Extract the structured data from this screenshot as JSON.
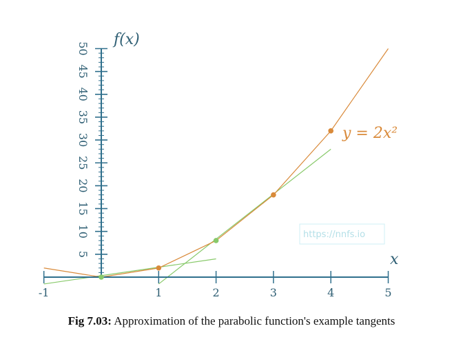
{
  "chart_data": {
    "type": "line",
    "x_ticks": [
      "-1",
      "1",
      "2",
      "3",
      "4",
      "5"
    ],
    "y_ticks": [
      "5",
      "10",
      "15",
      "20",
      "25",
      "30",
      "35",
      "40",
      "45",
      "50"
    ],
    "xlim": [
      -1,
      5
    ],
    "ylim": [
      0,
      50
    ],
    "y_axis_title": "f(x)",
    "x_axis_title": "x",
    "series": [
      {
        "name": "y = 2x²",
        "color": "#d98a3a",
        "x": [
          -1,
          0,
          1,
          2,
          3,
          4,
          5
        ],
        "y": [
          2,
          0,
          2,
          8,
          18,
          32,
          50
        ],
        "markers_x": [
          1,
          3,
          4
        ],
        "markers_y": [
          2,
          18,
          32
        ]
      }
    ],
    "tangents": [
      {
        "color": "#88c96a",
        "x": [
          -1,
          2
        ],
        "y": [
          -1.5,
          4
        ],
        "point": [
          0,
          0
        ]
      },
      {
        "color": "#88c96a",
        "x": [
          1,
          4
        ],
        "y": [
          -1.5,
          28
        ],
        "point": [
          2,
          8
        ]
      }
    ]
  },
  "watermark": "https://nnfs.io",
  "caption": {
    "label": "Fig 7.03:",
    "text": " Approximation of the parabolic function's example tangents"
  }
}
